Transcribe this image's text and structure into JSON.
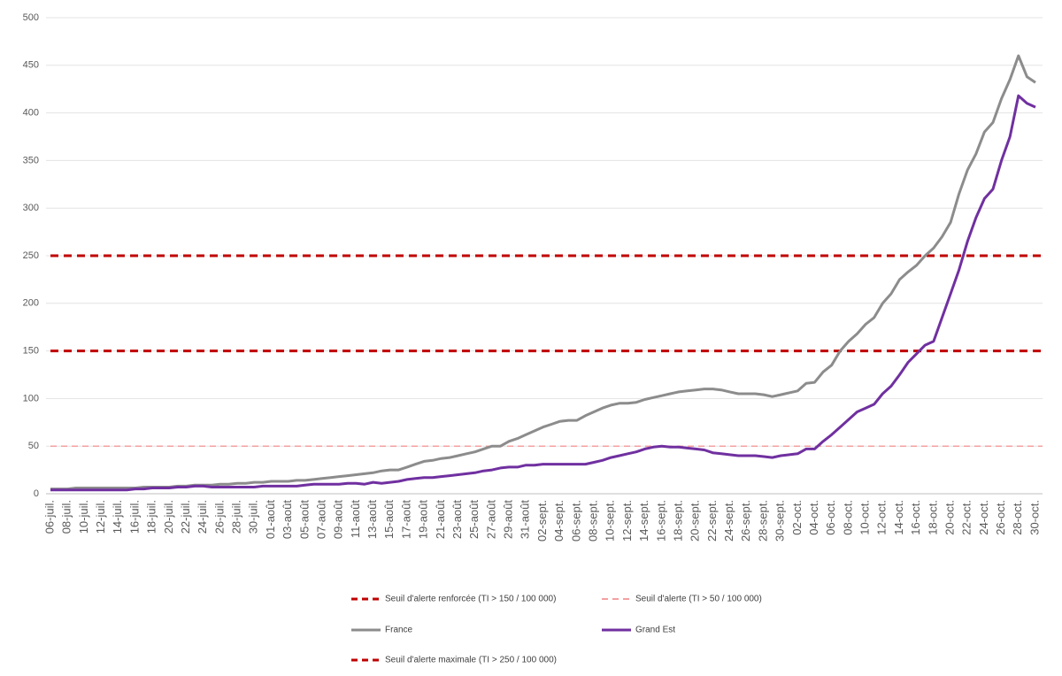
{
  "chart_data": {
    "type": "line",
    "categories": [
      "06-juil.",
      null,
      "08-juil.",
      null,
      "10-juil.",
      null,
      "12-juil.",
      null,
      "14-juil.",
      null,
      "16-juil.",
      null,
      "18-juil.",
      null,
      "20-juil.",
      null,
      "22-juil.",
      null,
      "24-juil.",
      null,
      "26-juil.",
      null,
      "28-juil.",
      null,
      "30-juil.",
      null,
      "01-août",
      null,
      "03-août",
      null,
      "05-août",
      null,
      "07-août",
      null,
      "09-août",
      null,
      "11-août",
      null,
      "13-août",
      null,
      "15-août",
      null,
      "17-août",
      null,
      "19-août",
      null,
      "21-août",
      null,
      "23-août",
      null,
      "25-août",
      null,
      "27-août",
      null,
      "29-août",
      null,
      "31-août",
      null,
      "02-sept.",
      null,
      "04-sept.",
      null,
      "06-sept.",
      null,
      "08-sept.",
      null,
      "10-sept.",
      null,
      "12-sept.",
      null,
      "14-sept.",
      null,
      "16-sept.",
      null,
      "18-sept.",
      null,
      "20-sept.",
      null,
      "22-sept.",
      null,
      "24-sept.",
      null,
      "26-sept.",
      null,
      "28-sept.",
      null,
      "30-sept.",
      null,
      "02-oct.",
      null,
      "04-oct.",
      null,
      "06-oct.",
      null,
      "08-oct.",
      null,
      "10-oct.",
      null,
      "12-oct.",
      null,
      "14-oct.",
      null,
      "16-oct.",
      null,
      "18-oct.",
      null,
      "20-oct.",
      null,
      "22-oct.",
      null,
      "24-oct.",
      null,
      "26-oct.",
      null,
      "28-oct.",
      null,
      "30-oct."
    ],
    "series": [
      {
        "name": "France",
        "color": "#8c8c8c",
        "values": [
          5,
          5,
          5,
          6,
          6,
          6,
          6,
          6,
          6,
          6,
          6,
          7,
          7,
          7,
          7,
          8,
          8,
          9,
          9,
          9,
          10,
          10,
          11,
          11,
          12,
          12,
          13,
          13,
          13,
          14,
          14,
          15,
          16,
          17,
          18,
          19,
          20,
          21,
          22,
          24,
          25,
          25,
          28,
          31,
          34,
          35,
          37,
          38,
          40,
          42,
          44,
          47,
          50,
          50,
          55,
          58,
          62,
          66,
          70,
          73,
          76,
          77,
          77,
          82,
          86,
          90,
          93,
          95,
          95,
          96,
          99,
          101,
          103,
          105,
          107,
          108,
          109,
          110,
          110,
          109,
          107,
          105,
          105,
          105,
          104,
          102,
          104,
          106,
          108,
          116,
          117,
          128,
          135,
          150,
          160,
          168,
          178,
          185,
          200,
          210,
          225,
          233,
          240,
          250,
          258,
          270,
          285,
          315,
          340,
          357,
          380,
          390,
          415,
          435,
          460,
          438,
          432
        ]
      },
      {
        "name": "Grand Est",
        "color": "#7030a0",
        "values": [
          4,
          4,
          4,
          4,
          4,
          4,
          4,
          4,
          4,
          4,
          5,
          5,
          6,
          6,
          6,
          7,
          7,
          8,
          8,
          7,
          7,
          7,
          7,
          7,
          7,
          8,
          8,
          8,
          8,
          8,
          9,
          10,
          10,
          10,
          10,
          11,
          11,
          10,
          12,
          11,
          12,
          13,
          15,
          16,
          17,
          17,
          18,
          19,
          20,
          21,
          22,
          24,
          25,
          27,
          28,
          28,
          30,
          30,
          31,
          31,
          31,
          31,
          31,
          31,
          33,
          35,
          38,
          40,
          42,
          44,
          47,
          49,
          50,
          49,
          49,
          48,
          47,
          46,
          43,
          42,
          41,
          40,
          40,
          40,
          39,
          38,
          40,
          41,
          42,
          47,
          47,
          55,
          62,
          70,
          78,
          86,
          90,
          94,
          105,
          113,
          125,
          138,
          147,
          156,
          160,
          185,
          210,
          235,
          265,
          290,
          310,
          320,
          350,
          375,
          418,
          410,
          406
        ]
      }
    ],
    "reference_lines": [
      {
        "name": "Seuil d'alerte renforcée (TI > 150 / 100 000)",
        "value": 150,
        "color": "#c00000"
      },
      {
        "name": "Seuil d'alerte (TI > 50 / 100 000)",
        "value": 50,
        "color": "#f4a0a0"
      },
      {
        "name": "Seuil d'alerte maximale (TI > 250 / 100 000)",
        "value": 250,
        "color": "#c00000"
      }
    ],
    "ylim": [
      0,
      500
    ],
    "yticks": [
      0,
      50,
      100,
      150,
      200,
      250,
      300,
      350,
      400,
      450,
      500
    ],
    "grid": true
  }
}
